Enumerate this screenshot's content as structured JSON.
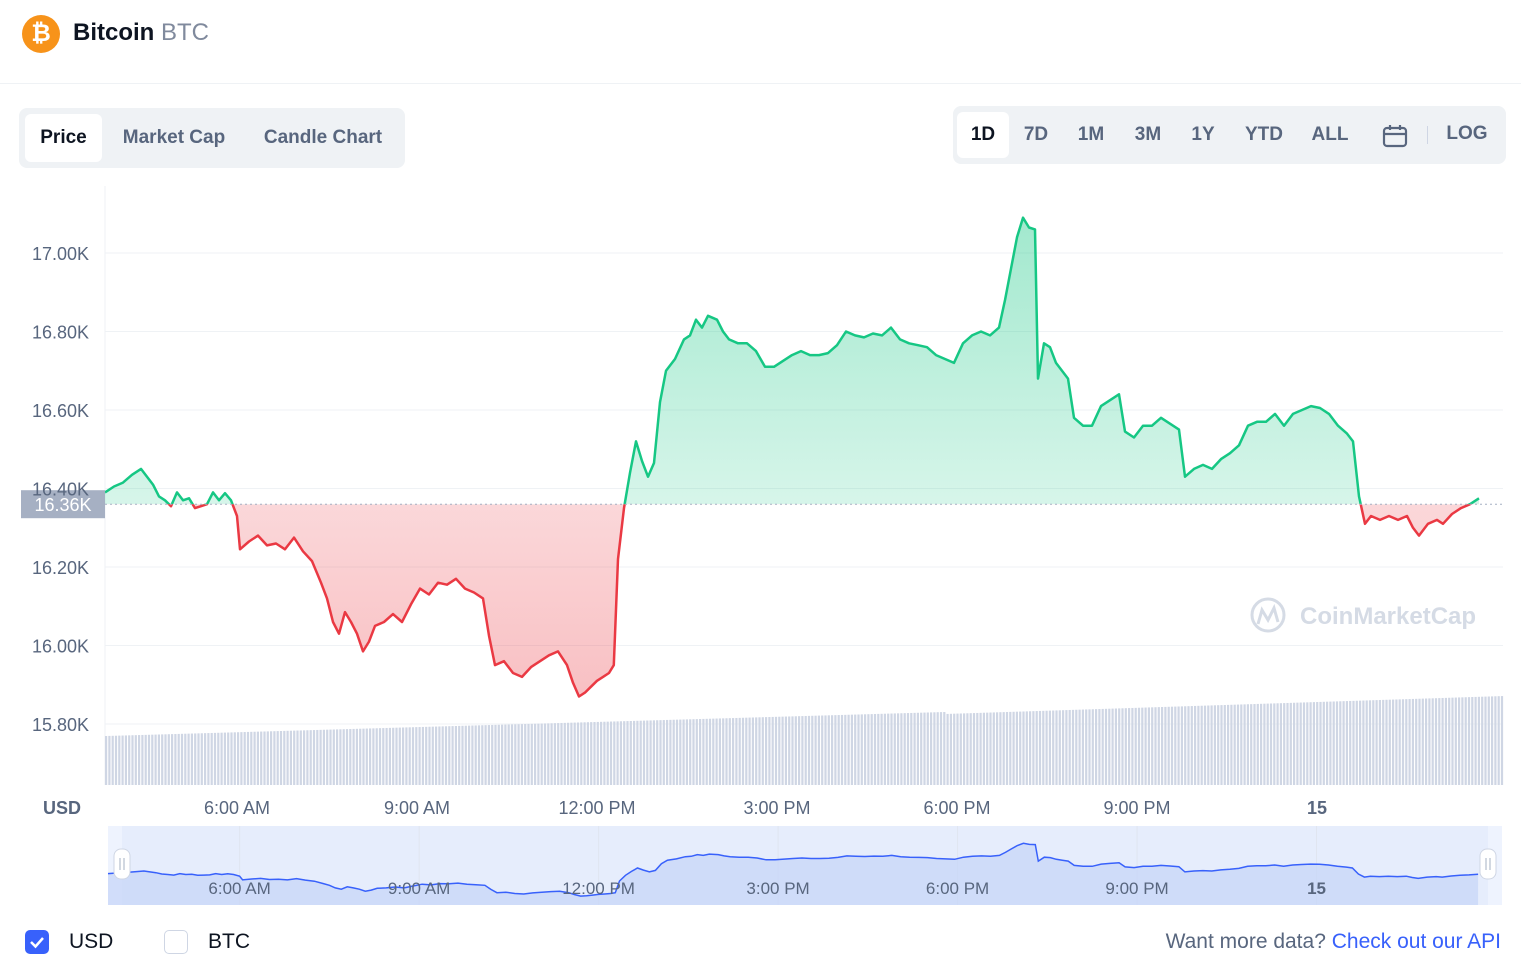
{
  "header": {
    "coin_name": "Bitcoin",
    "coin_symbol": "BTC",
    "logo_glyph": "₿",
    "logo_color": "#f7931a"
  },
  "tabs": [
    {
      "label": "Price",
      "active": true
    },
    {
      "label": "Market Cap",
      "active": false
    },
    {
      "label": "Candle Chart",
      "active": false
    }
  ],
  "ranges": [
    {
      "label": "1D",
      "active": true
    },
    {
      "label": "7D",
      "active": false
    },
    {
      "label": "1M",
      "active": false
    },
    {
      "label": "3M",
      "active": false
    },
    {
      "label": "1Y",
      "active": false
    },
    {
      "label": "YTD",
      "active": false
    },
    {
      "label": "ALL",
      "active": false
    }
  ],
  "calendar_icon": "calendar-icon",
  "log_label": "LOG",
  "chart_data": {
    "type": "area",
    "currency_label": "USD",
    "watermark": "CoinMarketCap",
    "baseline_value": 16360,
    "baseline_label": "16.36K",
    "ylim": [
      15650,
      17200
    ],
    "y_ticks": [
      15800,
      16000,
      16200,
      16400,
      16600,
      16800,
      17000
    ],
    "y_tick_labels": [
      "15.80K",
      "16.00K",
      "16.20K",
      "16.40K",
      "16.60K",
      "16.80K",
      "17.00K"
    ],
    "x_ticks": [
      6,
      9,
      12,
      15,
      18,
      21,
      24
    ],
    "x_tick_labels": [
      "6:00 AM",
      "9:00 AM",
      "12:00 PM",
      "3:00 PM",
      "6:00 PM",
      "9:00 PM",
      "15"
    ],
    "xlim_hours": [
      3.8,
      27.1
    ],
    "colors": {
      "up": "#16c784",
      "down": "#ea3943",
      "volume": "#cfd6e4",
      "grid": "#eff2f5"
    },
    "price_series": [
      [
        3.8,
        16390
      ],
      [
        3.95,
        16405
      ],
      [
        4.1,
        16415
      ],
      [
        4.25,
        16435
      ],
      [
        4.4,
        16450
      ],
      [
        4.5,
        16430
      ],
      [
        4.6,
        16410
      ],
      [
        4.7,
        16380
      ],
      [
        4.8,
        16370
      ],
      [
        4.9,
        16355
      ],
      [
        5.0,
        16390
      ],
      [
        5.1,
        16370
      ],
      [
        5.2,
        16375
      ],
      [
        5.3,
        16350
      ],
      [
        5.4,
        16355
      ],
      [
        5.5,
        16360
      ],
      [
        5.6,
        16390
      ],
      [
        5.7,
        16370
      ],
      [
        5.8,
        16388
      ],
      [
        5.9,
        16370
      ],
      [
        6.0,
        16330
      ],
      [
        6.05,
        16245
      ],
      [
        6.2,
        16265
      ],
      [
        6.35,
        16280
      ],
      [
        6.5,
        16255
      ],
      [
        6.65,
        16260
      ],
      [
        6.8,
        16245
      ],
      [
        6.95,
        16275
      ],
      [
        7.1,
        16240
      ],
      [
        7.25,
        16215
      ],
      [
        7.4,
        16160
      ],
      [
        7.5,
        16120
      ],
      [
        7.6,
        16060
      ],
      [
        7.7,
        16030
      ],
      [
        7.8,
        16085
      ],
      [
        7.9,
        16060
      ],
      [
        8.0,
        16030
      ],
      [
        8.1,
        15985
      ],
      [
        8.2,
        16010
      ],
      [
        8.3,
        16050
      ],
      [
        8.45,
        16060
      ],
      [
        8.6,
        16080
      ],
      [
        8.75,
        16060
      ],
      [
        8.9,
        16105
      ],
      [
        9.05,
        16145
      ],
      [
        9.2,
        16130
      ],
      [
        9.35,
        16160
      ],
      [
        9.5,
        16155
      ],
      [
        9.65,
        16170
      ],
      [
        9.8,
        16145
      ],
      [
        9.95,
        16135
      ],
      [
        10.1,
        16120
      ],
      [
        10.2,
        16025
      ],
      [
        10.3,
        15950
      ],
      [
        10.45,
        15960
      ],
      [
        10.6,
        15930
      ],
      [
        10.75,
        15920
      ],
      [
        10.9,
        15945
      ],
      [
        11.05,
        15960
      ],
      [
        11.2,
        15975
      ],
      [
        11.35,
        15985
      ],
      [
        11.5,
        15950
      ],
      [
        11.6,
        15905
      ],
      [
        11.7,
        15870
      ],
      [
        11.8,
        15880
      ],
      [
        11.9,
        15895
      ],
      [
        12.0,
        15910
      ],
      [
        12.1,
        15920
      ],
      [
        12.2,
        15930
      ],
      [
        12.28,
        15950
      ],
      [
        12.35,
        16220
      ],
      [
        12.45,
        16350
      ],
      [
        12.55,
        16440
      ],
      [
        12.65,
        16520
      ],
      [
        12.75,
        16470
      ],
      [
        12.85,
        16430
      ],
      [
        12.95,
        16465
      ],
      [
        13.05,
        16620
      ],
      [
        13.15,
        16700
      ],
      [
        13.3,
        16730
      ],
      [
        13.45,
        16780
      ],
      [
        13.55,
        16790
      ],
      [
        13.65,
        16830
      ],
      [
        13.75,
        16810
      ],
      [
        13.85,
        16840
      ],
      [
        14.0,
        16830
      ],
      [
        14.1,
        16800
      ],
      [
        14.2,
        16780
      ],
      [
        14.35,
        16770
      ],
      [
        14.5,
        16770
      ],
      [
        14.65,
        16750
      ],
      [
        14.8,
        16710
      ],
      [
        14.95,
        16710
      ],
      [
        15.1,
        16725
      ],
      [
        15.25,
        16740
      ],
      [
        15.4,
        16750
      ],
      [
        15.55,
        16740
      ],
      [
        15.7,
        16740
      ],
      [
        15.85,
        16745
      ],
      [
        16.0,
        16765
      ],
      [
        16.15,
        16800
      ],
      [
        16.3,
        16790
      ],
      [
        16.45,
        16785
      ],
      [
        16.6,
        16795
      ],
      [
        16.75,
        16790
      ],
      [
        16.9,
        16810
      ],
      [
        17.05,
        16780
      ],
      [
        17.2,
        16770
      ],
      [
        17.35,
        16765
      ],
      [
        17.5,
        16760
      ],
      [
        17.65,
        16740
      ],
      [
        17.8,
        16730
      ],
      [
        17.95,
        16720
      ],
      [
        18.1,
        16770
      ],
      [
        18.25,
        16790
      ],
      [
        18.4,
        16800
      ],
      [
        18.55,
        16790
      ],
      [
        18.7,
        16810
      ],
      [
        18.8,
        16880
      ],
      [
        18.9,
        16960
      ],
      [
        19.0,
        17040
      ],
      [
        19.1,
        17090
      ],
      [
        19.2,
        17065
      ],
      [
        19.3,
        17060
      ],
      [
        19.35,
        16680
      ],
      [
        19.45,
        16770
      ],
      [
        19.55,
        16760
      ],
      [
        19.65,
        16720
      ],
      [
        19.75,
        16700
      ],
      [
        19.85,
        16680
      ],
      [
        19.95,
        16580
      ],
      [
        20.1,
        16560
      ],
      [
        20.25,
        16560
      ],
      [
        20.4,
        16610
      ],
      [
        20.55,
        16625
      ],
      [
        20.7,
        16640
      ],
      [
        20.8,
        16545
      ],
      [
        20.95,
        16530
      ],
      [
        21.1,
        16560
      ],
      [
        21.25,
        16560
      ],
      [
        21.4,
        16580
      ],
      [
        21.55,
        16565
      ],
      [
        21.7,
        16550
      ],
      [
        21.8,
        16430
      ],
      [
        21.95,
        16450
      ],
      [
        22.1,
        16460
      ],
      [
        22.25,
        16450
      ],
      [
        22.4,
        16475
      ],
      [
        22.55,
        16490
      ],
      [
        22.7,
        16510
      ],
      [
        22.85,
        16560
      ],
      [
        23.0,
        16570
      ],
      [
        23.15,
        16570
      ],
      [
        23.3,
        16590
      ],
      [
        23.45,
        16560
      ],
      [
        23.6,
        16590
      ],
      [
        23.75,
        16600
      ],
      [
        23.9,
        16610
      ],
      [
        24.05,
        16605
      ],
      [
        24.2,
        16590
      ],
      [
        24.35,
        16560
      ],
      [
        24.5,
        16540
      ],
      [
        24.6,
        16520
      ],
      [
        24.7,
        16380
      ],
      [
        24.8,
        16310
      ],
      [
        24.9,
        16330
      ],
      [
        25.05,
        16320
      ],
      [
        25.2,
        16330
      ],
      [
        25.35,
        16320
      ],
      [
        25.5,
        16330
      ],
      [
        25.6,
        16300
      ],
      [
        25.7,
        16280
      ],
      [
        25.85,
        16310
      ],
      [
        26.0,
        16320
      ],
      [
        26.1,
        16310
      ],
      [
        26.25,
        16335
      ],
      [
        26.4,
        16350
      ],
      [
        26.55,
        16360
      ],
      [
        26.7,
        16375
      ]
    ],
    "volume_series_note": "",
    "navigator_x_labels": [
      "6:00 AM",
      "9:00 AM",
      "12:00 PM",
      "3:00 PM",
      "6:00 PM",
      "9:00 PM",
      "15"
    ]
  },
  "footer": {
    "usd_label": "USD",
    "usd_checked": true,
    "btc_label": "BTC",
    "btc_checked": false,
    "api_prompt": "Want more data?",
    "api_link": "Check out our API"
  }
}
